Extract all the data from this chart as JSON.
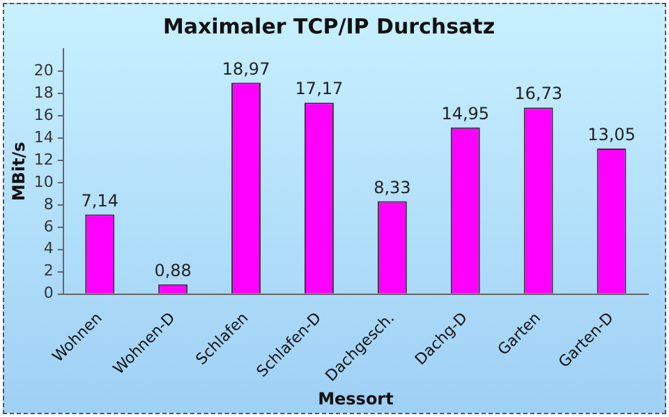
{
  "chart_data": {
    "type": "bar",
    "title": "Maximaler TCP/IP Durchsatz",
    "xlabel": "Messort",
    "ylabel": "MBit/s",
    "categories": [
      "Wohnen",
      "Wohnen-D",
      "Schlafen",
      "Schlafen-D",
      "Dachgesch.",
      "Dachg-D",
      "Garten",
      "Garten-D"
    ],
    "series": [
      {
        "color": "#ff00ff",
        "values": [
          7.14,
          0.88,
          18.97,
          17.17,
          8.33,
          14.95,
          16.73,
          13.05
        ],
        "value_labels": [
          "7,14",
          "0,88",
          "18,97",
          "17,17",
          "8,33",
          "14,95",
          "16,73",
          "13,05"
        ]
      }
    ],
    "ylim": [
      0,
      22
    ],
    "yticks": [
      0,
      2,
      4,
      6,
      8,
      10,
      12,
      14,
      16,
      18,
      20
    ],
    "grid": false,
    "legend": false
  }
}
